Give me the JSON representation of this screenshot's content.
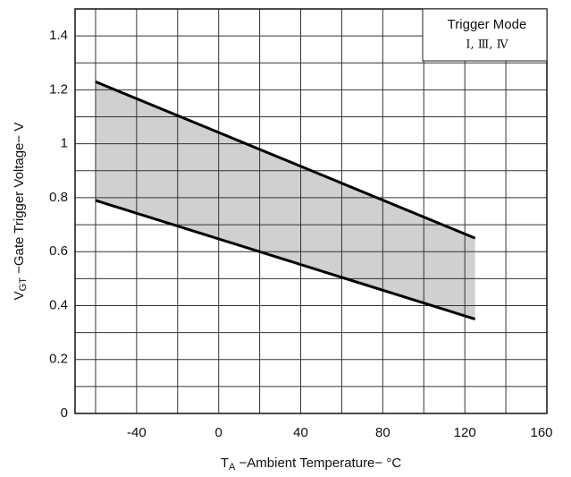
{
  "chart_data": {
    "type": "line",
    "x_label": {
      "symbol": "T",
      "subscript": "A",
      "text": " −Ambient Temperature− °C"
    },
    "y_label": {
      "symbol": "V",
      "subscript": "GT",
      "text": " −Gate Trigger Voltage− V"
    },
    "annotation": {
      "title": "Trigger Mode",
      "text": "Ⅰ, Ⅲ, Ⅳ"
    },
    "x": [
      -60,
      125
    ],
    "series": [
      {
        "color": "#000000",
        "values": [
          1.23,
          0.65
        ]
      },
      {
        "color": "#000000",
        "values": [
          0.79,
          0.35
        ]
      }
    ],
    "fill_between": true,
    "fill_color": "#c8c8c8",
    "xlim": [
      -70,
      160
    ],
    "xticks": [
      -40,
      0,
      40,
      80,
      120,
      160
    ],
    "x_minor_ticks": [
      -60,
      -20,
      20,
      60,
      100,
      140
    ],
    "ylim": [
      0,
      1.5
    ],
    "yticks": [
      0,
      0.2,
      0.4,
      0.6,
      0.8,
      1.0,
      1.2,
      1.4
    ],
    "y_minor_ticks": [
      0.1,
      0.3,
      0.5,
      0.7,
      0.9,
      1.1,
      1.3
    ],
    "grid": true
  }
}
